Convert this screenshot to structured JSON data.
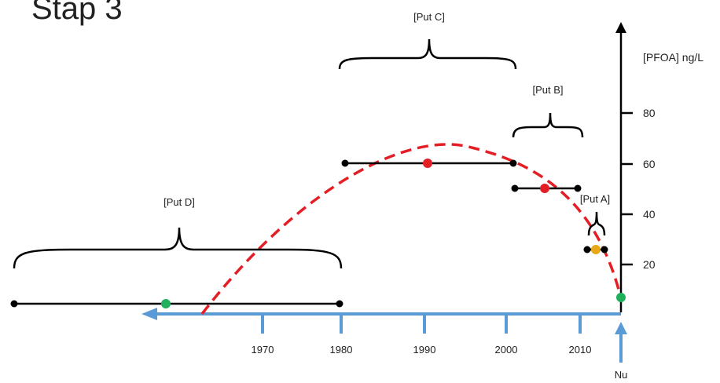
{
  "title": "Stap 3",
  "y_axis": {
    "label": "[PFOA] ng/L",
    "ticks": [
      "20",
      "40",
      "60",
      "80"
    ]
  },
  "x_axis": {
    "ticks": [
      "1970",
      "1980",
      "1990",
      "2000",
      "2010"
    ],
    "now_label": "Nu"
  },
  "periods": {
    "put_a": "[Put A]",
    "put_b": "[Put B]",
    "put_c": "[Put C]",
    "put_d": "[Put D]"
  },
  "colors": {
    "axis": "#000000",
    "time_arrow": "#5B9BD5",
    "curve": "#E41E25",
    "green_point": "#1EB05A",
    "red_point": "#E41E25",
    "yellow_point": "#E8A716",
    "segment": "#000000"
  }
}
